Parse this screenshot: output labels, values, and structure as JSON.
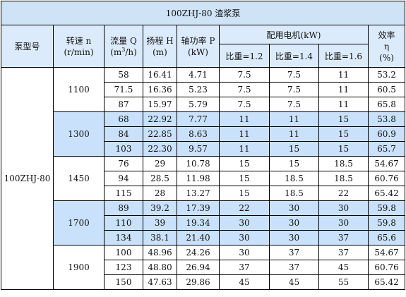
{
  "title": "100ZHJ-80 渣浆泵",
  "headers": {
    "pump_model": "泵型号",
    "speed": {
      "line1": "转速 n",
      "line2": "(r/min)"
    },
    "flow": {
      "line1": "流量 Q",
      "line2_pre": "(m",
      "line2_sup": "3",
      "line2_post": "/h)"
    },
    "head": {
      "line1": "扬程 H",
      "line2": "(m)"
    },
    "shaft_power": {
      "line1": "轴功率 P",
      "line2": "(kW)"
    },
    "motor_group": "配用电机(kW)",
    "motor_sg": [
      "比重=1.2",
      "比重=1.4",
      "比重=1.6"
    ],
    "efficiency": {
      "line1": "效率",
      "line2": "η",
      "line3": "(%)"
    }
  },
  "model": "100ZHJ-80",
  "groups": [
    {
      "speed": "1100",
      "rows": [
        [
          "58",
          "16.41",
          "4.71",
          "7.5",
          "7.5",
          "11",
          "53.2"
        ],
        [
          "71.5",
          "16.36",
          "5.23",
          "7.5",
          "7.5",
          "11",
          "60.5"
        ],
        [
          "87",
          "15.97",
          "5.79",
          "7.5",
          "7.5",
          "11",
          "65.8"
        ]
      ]
    },
    {
      "speed": "1300",
      "rows": [
        [
          "68",
          "22.92",
          "7.77",
          "11",
          "11",
          "15",
          "53.8"
        ],
        [
          "84",
          "22.85",
          "8.63",
          "11",
          "11",
          "15",
          "60.9"
        ],
        [
          "103",
          "22.30",
          "9.57",
          "11",
          "15",
          "15",
          "65.7"
        ]
      ]
    },
    {
      "speed": "1450",
      "rows": [
        [
          "76",
          "29",
          "10.78",
          "15",
          "15",
          "18.5",
          "54.67"
        ],
        [
          "94",
          "28.5",
          "11.98",
          "15",
          "18.5",
          "18.5",
          "60.76"
        ],
        [
          "115",
          "28",
          "13.27",
          "15",
          "18.5",
          "22",
          "65.42"
        ]
      ]
    },
    {
      "speed": "1700",
      "rows": [
        [
          "89",
          "39.2",
          "17.39",
          "22",
          "30",
          "30",
          "59.8"
        ],
        [
          "110",
          "39",
          "19.34",
          "30",
          "30",
          "30",
          "59.8"
        ],
        [
          "134",
          "38.1",
          "21.40",
          "30",
          "30",
          "37",
          "65.6"
        ]
      ]
    },
    {
      "speed": "1900",
      "rows": [
        [
          "100",
          "48.96",
          "24.26",
          "30",
          "37",
          "37",
          "54.67"
        ],
        [
          "123",
          "48.80",
          "26.94",
          "37",
          "37",
          "45",
          "60.76"
        ],
        [
          "150",
          "47.63",
          "29.86",
          "45",
          "45",
          "55",
          "65.42"
        ]
      ]
    }
  ],
  "colors": {
    "title_bg": "#cfe3f7",
    "header_bg": "#dcebfb",
    "row_blue": "#c9e1fa",
    "row_white": "#ffffff",
    "border": "#000000"
  }
}
